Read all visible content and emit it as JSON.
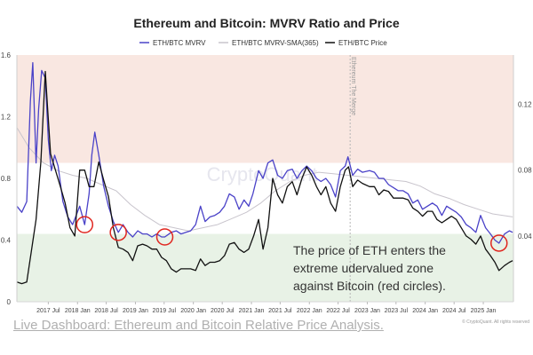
{
  "chart_data": {
    "type": "line",
    "title": "Ethereum and Bitcoin: MVRV Ratio and Price",
    "legend": {
      "placement": "top",
      "entries": [
        "ETH/BTC MVRV",
        "ETH/BTC MVRV-SMA(365)",
        "ETH/BTC Price"
      ]
    },
    "x_axis": {
      "type": "date",
      "range": [
        "2016-12-15",
        "2025-07-10"
      ],
      "tick_labels": [
        "2017 Jul",
        "2018 Jan",
        "2018 Jul",
        "2019 Jan",
        "2019 Jul",
        "2020 Jan",
        "2020 Jul",
        "2021 Jan",
        "2021 Jul",
        "2022 Jan",
        "2022 Jul",
        "2023 Jan",
        "2023 Jul",
        "2024 Jan",
        "2024 Jul",
        "2025 Jan"
      ],
      "tick_dates": [
        "2017-07-01",
        "2018-01-01",
        "2018-07-01",
        "2019-01-01",
        "2019-07-01",
        "2020-01-01",
        "2020-07-01",
        "2021-01-01",
        "2021-07-01",
        "2022-01-01",
        "2022-07-01",
        "2023-01-01",
        "2023-07-01",
        "2024-01-01",
        "2024-07-01",
        "2025-01-01"
      ]
    },
    "y_left": {
      "range": [
        0,
        1.6
      ],
      "tick_labels": [
        "0",
        "0.4",
        "0.8",
        "1.2",
        "1.6"
      ],
      "ticks": [
        0,
        0.4,
        0.8,
        1.2,
        1.6
      ]
    },
    "y_right": {
      "range": [
        0,
        0.15
      ],
      "tick_labels": [
        "0.04",
        "0.08",
        "0.12"
      ],
      "ticks": [
        0.04,
        0.08,
        0.12
      ]
    },
    "zones": [
      {
        "from": 0.9,
        "to": 1.6,
        "color": "#f9e7e1"
      },
      {
        "from": 0.44,
        "to": 0.9,
        "color": "#ffffff"
      },
      {
        "from": 0,
        "to": 0.44,
        "color": "#e8f2e6"
      }
    ],
    "event": {
      "date": "2022-09-15",
      "label": "Ethereum The Merge"
    },
    "annotation": [
      "The price of  ETH enters the",
      "extreme udervalued zone",
      "against Bitcoin (red circles)."
    ],
    "watermark": "CryptoQuant",
    "credit": "© CryptoQuant. All rights reserved",
    "colors": {
      "mvrv": "#4a42c8",
      "sma": "#c8c4cc",
      "price": "#111111",
      "circle": "#e0261f",
      "event": "#b5b5b5"
    },
    "highlight_dates": [
      "2018-02-15",
      "2018-09-15",
      "2019-07-05",
      "2025-04-10"
    ],
    "series": [
      {
        "name": "ETH/BTC MVRV",
        "axis": "left",
        "points": [
          [
            "2016-12-15",
            0.62
          ],
          [
            "2017-01-15",
            0.58
          ],
          [
            "2017-02-15",
            0.65
          ],
          [
            "2017-03-10",
            1.3
          ],
          [
            "2017-03-25",
            1.55
          ],
          [
            "2017-04-15",
            0.9
          ],
          [
            "2017-05-01",
            1.25
          ],
          [
            "2017-05-20",
            1.5
          ],
          [
            "2017-06-12",
            1.45
          ],
          [
            "2017-07-01",
            1.05
          ],
          [
            "2017-07-20",
            0.85
          ],
          [
            "2017-08-10",
            0.95
          ],
          [
            "2017-09-01",
            0.88
          ],
          [
            "2017-10-01",
            0.65
          ],
          [
            "2017-11-01",
            0.55
          ],
          [
            "2017-12-01",
            0.5
          ],
          [
            "2017-12-20",
            0.55
          ],
          [
            "2018-01-15",
            0.62
          ],
          [
            "2018-02-15",
            0.5
          ],
          [
            "2018-03-15",
            0.7
          ],
          [
            "2018-04-01",
            0.95
          ],
          [
            "2018-04-20",
            1.1
          ],
          [
            "2018-05-15",
            0.95
          ],
          [
            "2018-06-15",
            0.75
          ],
          [
            "2018-07-15",
            0.62
          ],
          [
            "2018-08-15",
            0.52
          ],
          [
            "2018-09-15",
            0.45
          ],
          [
            "2018-10-15",
            0.5
          ],
          [
            "2018-11-15",
            0.45
          ],
          [
            "2018-12-15",
            0.42
          ],
          [
            "2019-01-15",
            0.46
          ],
          [
            "2019-02-15",
            0.44
          ],
          [
            "2019-03-15",
            0.44
          ],
          [
            "2019-04-15",
            0.42
          ],
          [
            "2019-05-15",
            0.44
          ],
          [
            "2019-06-15",
            0.42
          ],
          [
            "2019-07-05",
            0.42
          ],
          [
            "2019-08-15",
            0.45
          ],
          [
            "2019-09-15",
            0.46
          ],
          [
            "2019-10-15",
            0.44
          ],
          [
            "2019-11-15",
            0.45
          ],
          [
            "2019-12-15",
            0.46
          ],
          [
            "2020-01-15",
            0.5
          ],
          [
            "2020-02-15",
            0.62
          ],
          [
            "2020-03-15",
            0.52
          ],
          [
            "2020-04-15",
            0.55
          ],
          [
            "2020-05-15",
            0.56
          ],
          [
            "2020-06-15",
            0.58
          ],
          [
            "2020-07-15",
            0.62
          ],
          [
            "2020-08-15",
            0.7
          ],
          [
            "2020-09-15",
            0.68
          ],
          [
            "2020-10-15",
            0.6
          ],
          [
            "2020-11-15",
            0.66
          ],
          [
            "2020-12-15",
            0.62
          ],
          [
            "2021-01-10",
            0.7
          ],
          [
            "2021-02-15",
            0.85
          ],
          [
            "2021-03-15",
            0.8
          ],
          [
            "2021-04-15",
            0.9
          ],
          [
            "2021-05-15",
            0.92
          ],
          [
            "2021-06-15",
            0.82
          ],
          [
            "2021-07-15",
            0.8
          ],
          [
            "2021-08-15",
            0.85
          ],
          [
            "2021-09-15",
            0.86
          ],
          [
            "2021-10-15",
            0.8
          ],
          [
            "2021-11-15",
            0.85
          ],
          [
            "2021-12-15",
            0.88
          ],
          [
            "2022-01-15",
            0.85
          ],
          [
            "2022-02-15",
            0.8
          ],
          [
            "2022-03-15",
            0.78
          ],
          [
            "2022-04-15",
            0.8
          ],
          [
            "2022-05-15",
            0.76
          ],
          [
            "2022-06-15",
            0.68
          ],
          [
            "2022-07-15",
            0.85
          ],
          [
            "2022-08-15",
            0.88
          ],
          [
            "2022-09-01",
            0.94
          ],
          [
            "2022-10-01",
            0.82
          ],
          [
            "2022-11-01",
            0.86
          ],
          [
            "2022-12-01",
            0.84
          ],
          [
            "2023-01-15",
            0.85
          ],
          [
            "2023-02-15",
            0.84
          ],
          [
            "2023-03-15",
            0.8
          ],
          [
            "2023-04-15",
            0.8
          ],
          [
            "2023-05-15",
            0.76
          ],
          [
            "2023-06-15",
            0.74
          ],
          [
            "2023-07-15",
            0.72
          ],
          [
            "2023-08-15",
            0.72
          ],
          [
            "2023-09-15",
            0.7
          ],
          [
            "2023-10-15",
            0.64
          ],
          [
            "2023-11-15",
            0.66
          ],
          [
            "2023-12-15",
            0.6
          ],
          [
            "2024-01-15",
            0.62
          ],
          [
            "2024-02-15",
            0.64
          ],
          [
            "2024-03-15",
            0.62
          ],
          [
            "2024-04-15",
            0.56
          ],
          [
            "2024-05-15",
            0.62
          ],
          [
            "2024-06-15",
            0.6
          ],
          [
            "2024-07-15",
            0.58
          ],
          [
            "2024-08-15",
            0.55
          ],
          [
            "2024-09-15",
            0.5
          ],
          [
            "2024-10-15",
            0.48
          ],
          [
            "2024-11-15",
            0.45
          ],
          [
            "2024-12-15",
            0.56
          ],
          [
            "2025-01-15",
            0.48
          ],
          [
            "2025-02-15",
            0.44
          ],
          [
            "2025-03-15",
            0.4
          ],
          [
            "2025-04-10",
            0.38
          ],
          [
            "2025-05-15",
            0.44
          ],
          [
            "2025-06-15",
            0.46
          ],
          [
            "2025-07-05",
            0.45
          ]
        ]
      },
      {
        "name": "ETH/BTC MVRV-SMA(365)",
        "axis": "left",
        "points": [
          [
            "2016-12-15",
            1.13
          ],
          [
            "2017-03-01",
            1.0
          ],
          [
            "2017-06-01",
            0.9
          ],
          [
            "2017-09-01",
            0.85
          ],
          [
            "2017-12-01",
            0.82
          ],
          [
            "2018-03-01",
            0.8
          ],
          [
            "2018-06-01",
            0.76
          ],
          [
            "2018-09-01",
            0.72
          ],
          [
            "2018-12-01",
            0.63
          ],
          [
            "2019-03-01",
            0.56
          ],
          [
            "2019-06-01",
            0.5
          ],
          [
            "2019-09-01",
            0.48
          ],
          [
            "2019-12-01",
            0.46
          ],
          [
            "2020-03-01",
            0.48
          ],
          [
            "2020-06-01",
            0.5
          ],
          [
            "2020-09-01",
            0.54
          ],
          [
            "2020-12-01",
            0.58
          ],
          [
            "2021-03-01",
            0.64
          ],
          [
            "2021-06-01",
            0.72
          ],
          [
            "2021-09-01",
            0.78
          ],
          [
            "2021-12-01",
            0.82
          ],
          [
            "2022-03-01",
            0.84
          ],
          [
            "2022-06-01",
            0.83
          ],
          [
            "2022-09-01",
            0.82
          ],
          [
            "2022-12-01",
            0.81
          ],
          [
            "2023-03-01",
            0.8
          ],
          [
            "2023-06-01",
            0.79
          ],
          [
            "2023-09-01",
            0.78
          ],
          [
            "2023-12-01",
            0.75
          ],
          [
            "2024-03-01",
            0.7
          ],
          [
            "2024-06-01",
            0.67
          ],
          [
            "2024-09-01",
            0.63
          ],
          [
            "2024-12-01",
            0.6
          ],
          [
            "2025-03-01",
            0.57
          ],
          [
            "2025-07-05",
            0.55
          ]
        ]
      },
      {
        "name": "ETH/BTC Price",
        "axis": "right",
        "points": [
          [
            "2016-12-15",
            0.012
          ],
          [
            "2017-01-15",
            0.011
          ],
          [
            "2017-02-15",
            0.012
          ],
          [
            "2017-03-15",
            0.03
          ],
          [
            "2017-04-15",
            0.05
          ],
          [
            "2017-05-15",
            0.085
          ],
          [
            "2017-06-12",
            0.14
          ],
          [
            "2017-06-25",
            0.12
          ],
          [
            "2017-07-15",
            0.09
          ],
          [
            "2017-08-15",
            0.08
          ],
          [
            "2017-09-15",
            0.07
          ],
          [
            "2017-10-15",
            0.06
          ],
          [
            "2017-11-15",
            0.045
          ],
          [
            "2017-12-15",
            0.04
          ],
          [
            "2018-01-15",
            0.08
          ],
          [
            "2018-02-15",
            0.08
          ],
          [
            "2018-03-15",
            0.07
          ],
          [
            "2018-04-15",
            0.07
          ],
          [
            "2018-05-15",
            0.085
          ],
          [
            "2018-06-15",
            0.074
          ],
          [
            "2018-07-15",
            0.064
          ],
          [
            "2018-08-15",
            0.045
          ],
          [
            "2018-09-15",
            0.033
          ],
          [
            "2018-10-15",
            0.032
          ],
          [
            "2018-11-15",
            0.03
          ],
          [
            "2018-12-15",
            0.025
          ],
          [
            "2019-01-15",
            0.034
          ],
          [
            "2019-02-15",
            0.035
          ],
          [
            "2019-03-15",
            0.034
          ],
          [
            "2019-04-15",
            0.032
          ],
          [
            "2019-05-15",
            0.032
          ],
          [
            "2019-06-15",
            0.027
          ],
          [
            "2019-07-15",
            0.025
          ],
          [
            "2019-08-15",
            0.02
          ],
          [
            "2019-09-15",
            0.018
          ],
          [
            "2019-10-15",
            0.02
          ],
          [
            "2019-11-15",
            0.02
          ],
          [
            "2019-12-15",
            0.02
          ],
          [
            "2020-01-15",
            0.019
          ],
          [
            "2020-02-15",
            0.026
          ],
          [
            "2020-03-15",
            0.022
          ],
          [
            "2020-04-15",
            0.024
          ],
          [
            "2020-05-15",
            0.024
          ],
          [
            "2020-06-15",
            0.025
          ],
          [
            "2020-07-15",
            0.028
          ],
          [
            "2020-08-15",
            0.035
          ],
          [
            "2020-09-15",
            0.036
          ],
          [
            "2020-10-15",
            0.032
          ],
          [
            "2020-11-15",
            0.03
          ],
          [
            "2020-12-15",
            0.032
          ],
          [
            "2021-01-15",
            0.04
          ],
          [
            "2021-02-15",
            0.05
          ],
          [
            "2021-03-15",
            0.032
          ],
          [
            "2021-04-15",
            0.045
          ],
          [
            "2021-05-15",
            0.075
          ],
          [
            "2021-06-15",
            0.065
          ],
          [
            "2021-07-15",
            0.06
          ],
          [
            "2021-08-15",
            0.07
          ],
          [
            "2021-09-15",
            0.073
          ],
          [
            "2021-10-15",
            0.065
          ],
          [
            "2021-11-15",
            0.075
          ],
          [
            "2021-12-15",
            0.082
          ],
          [
            "2022-01-15",
            0.077
          ],
          [
            "2022-02-15",
            0.07
          ],
          [
            "2022-03-15",
            0.065
          ],
          [
            "2022-04-15",
            0.07
          ],
          [
            "2022-05-15",
            0.06
          ],
          [
            "2022-06-15",
            0.055
          ],
          [
            "2022-07-15",
            0.07
          ],
          [
            "2022-08-15",
            0.08
          ],
          [
            "2022-09-05",
            0.082
          ],
          [
            "2022-10-01",
            0.07
          ],
          [
            "2022-11-01",
            0.074
          ],
          [
            "2022-12-01",
            0.072
          ],
          [
            "2023-01-15",
            0.07
          ],
          [
            "2023-02-15",
            0.07
          ],
          [
            "2023-03-15",
            0.065
          ],
          [
            "2023-04-15",
            0.068
          ],
          [
            "2023-05-15",
            0.067
          ],
          [
            "2023-06-15",
            0.063
          ],
          [
            "2023-07-15",
            0.063
          ],
          [
            "2023-08-15",
            0.063
          ],
          [
            "2023-09-15",
            0.062
          ],
          [
            "2023-10-15",
            0.057
          ],
          [
            "2023-11-15",
            0.055
          ],
          [
            "2023-12-15",
            0.052
          ],
          [
            "2024-01-15",
            0.055
          ],
          [
            "2024-02-15",
            0.055
          ],
          [
            "2024-03-15",
            0.05
          ],
          [
            "2024-04-15",
            0.048
          ],
          [
            "2024-05-15",
            0.05
          ],
          [
            "2024-06-15",
            0.052
          ],
          [
            "2024-07-15",
            0.05
          ],
          [
            "2024-08-15",
            0.045
          ],
          [
            "2024-09-15",
            0.04
          ],
          [
            "2024-10-15",
            0.038
          ],
          [
            "2024-11-15",
            0.035
          ],
          [
            "2024-12-15",
            0.04
          ],
          [
            "2025-01-15",
            0.032
          ],
          [
            "2025-02-15",
            0.028
          ],
          [
            "2025-03-15",
            0.024
          ],
          [
            "2025-04-10",
            0.019
          ],
          [
            "2025-05-15",
            0.022
          ],
          [
            "2025-06-15",
            0.024
          ],
          [
            "2025-07-05",
            0.025
          ]
        ]
      }
    ]
  },
  "footer": {
    "link_text": "Live Dashboard: Ethereum and Bitcoin Relative Price Analysis."
  }
}
